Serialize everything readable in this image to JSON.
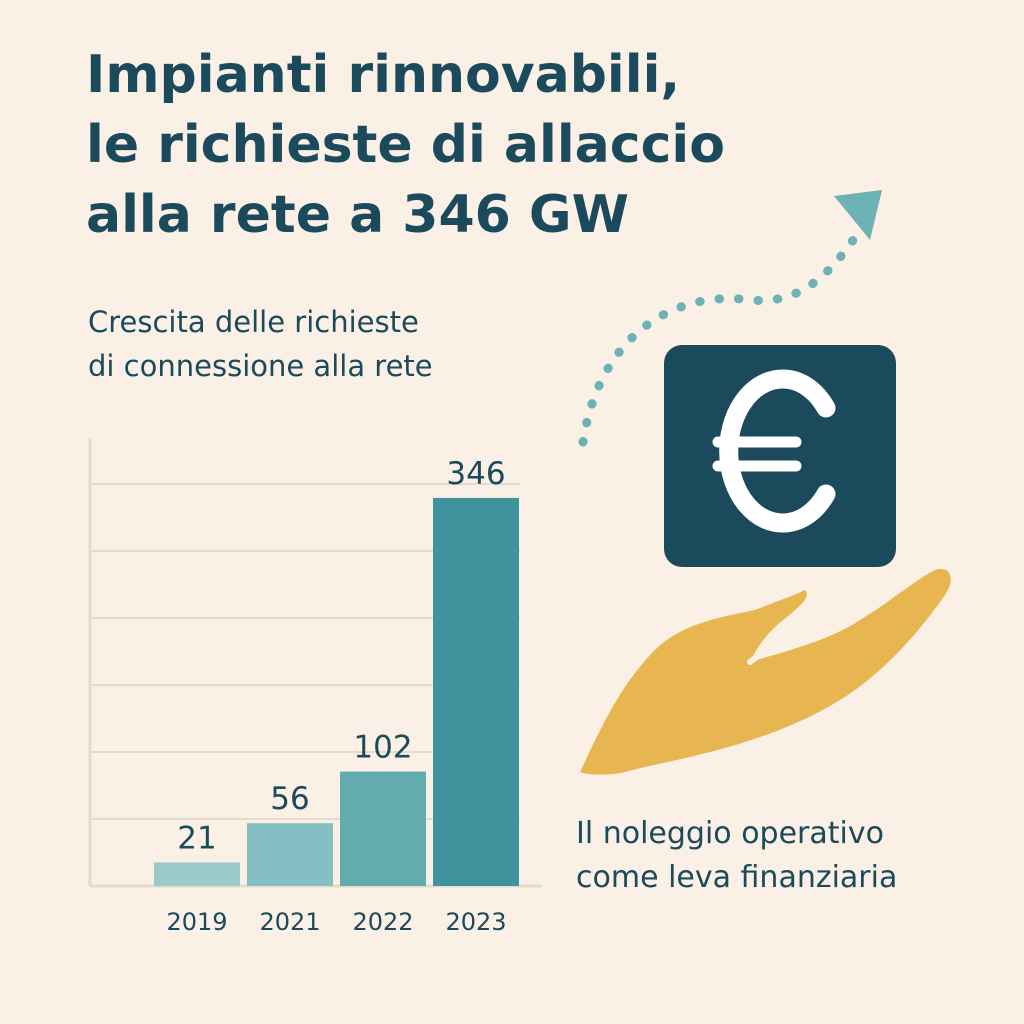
{
  "title_lines": [
    "Impianti rinnovabili,",
    "le richieste di allaccio",
    "alla rete a 346 GW"
  ],
  "subtitle_lines": [
    "Crescita delle richieste",
    "di connessione alla rete"
  ],
  "caption_lines": [
    "Il noleggio operativo",
    "come leva finanziaria"
  ],
  "icons": {
    "currency": "euro-icon",
    "hand": "hand-icon",
    "arrow": "dotted-arrow-icon"
  },
  "colors": {
    "background": "#fbf0e5",
    "text": "#1b4a5c",
    "bars": [
      "#9ccaca",
      "#84bfc3",
      "#62acb0",
      "#3e939c"
    ],
    "grid": "#e4dbcc",
    "euro_box": "#1b4a5c",
    "hand": "#e8b651",
    "arrow": "#6db3b5"
  },
  "chart_data": {
    "type": "bar",
    "title": "Crescita delle richieste di connessione alla rete",
    "categories": [
      "2019",
      "2021",
      "2022",
      "2023"
    ],
    "values": [
      21,
      56,
      102,
      346
    ],
    "data_labels": [
      "21",
      "56",
      "102",
      "346"
    ],
    "xlabel": "",
    "ylabel": "",
    "ylim": [
      0,
      370
    ],
    "grid": true,
    "y_tick_labels_shown": false
  }
}
